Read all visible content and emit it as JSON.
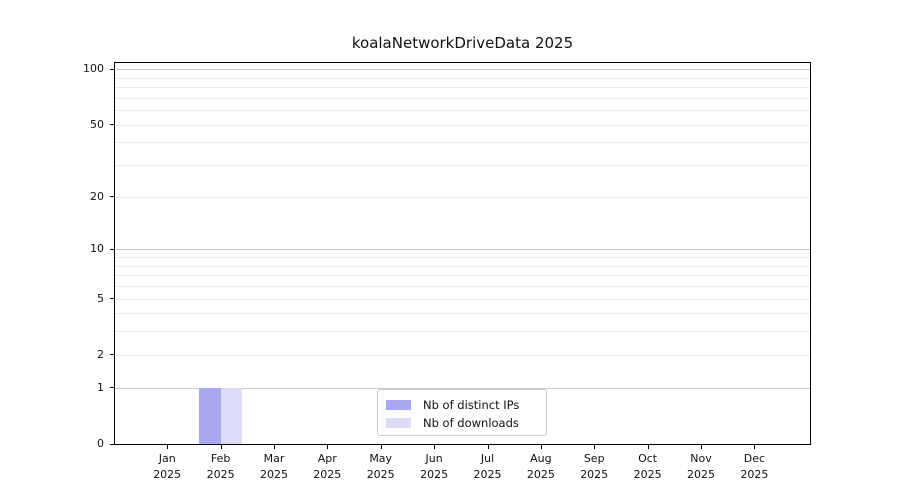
{
  "chart_data": {
    "type": "bar",
    "title": "koalaNetworkDriveData 2025",
    "categories": [
      "Jan 2025",
      "Feb 2025",
      "Mar 2025",
      "Apr 2025",
      "May 2025",
      "Jun 2025",
      "Jul 2025",
      "Aug 2025",
      "Sep 2025",
      "Oct 2025",
      "Nov 2025",
      "Dec 2025"
    ],
    "series": [
      {
        "name": "Nb of distinct IPs",
        "color": "#a8a8f0",
        "values": [
          0,
          1,
          0,
          0,
          0,
          0,
          0,
          0,
          0,
          0,
          0,
          0
        ]
      },
      {
        "name": "Nb of downloads",
        "color": "#dcdcf8",
        "values": [
          0,
          1,
          0,
          0,
          0,
          0,
          0,
          0,
          0,
          0,
          0,
          0
        ]
      }
    ],
    "xlabel": "",
    "ylabel": "",
    "yscale": "log1p",
    "ylim": [
      0,
      108
    ],
    "yticks": [
      0,
      1,
      2,
      5,
      10,
      20,
      50,
      100
    ],
    "ytick_labels": [
      "0",
      "1",
      "2",
      "5",
      "10",
      "20",
      "50",
      "100"
    ],
    "gridlines": {
      "major": [
        1,
        10,
        100
      ],
      "minor": [
        2,
        3,
        4,
        5,
        6,
        7,
        8,
        9,
        20,
        30,
        40,
        50,
        60,
        70,
        80,
        90
      ]
    },
    "legend": {
      "position": "lower center"
    },
    "colors": {
      "major_grid": "#c9c9c9",
      "minor_grid": "#ececec",
      "spine": "#000000",
      "text": "#111111",
      "background": "#ffffff",
      "legend_border": "#cccccc"
    }
  }
}
